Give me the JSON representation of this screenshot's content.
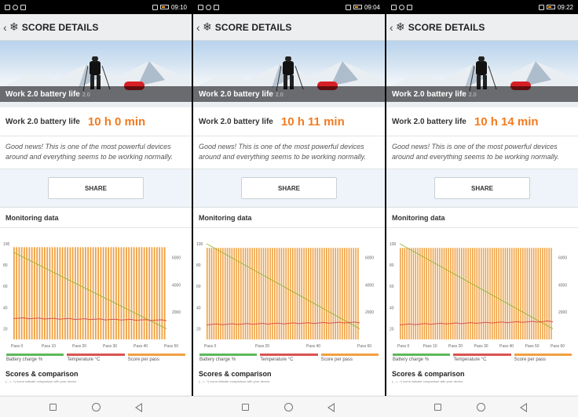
{
  "app": {
    "title": "SCORE DETAILS",
    "score_label": "Work 2.0 battery life",
    "hero_label": "Work 2.0 battery life",
    "hero_version": "2.0",
    "message": "Good news! This is one of the most powerful devices around and everything seems to be working normally.",
    "share_label": "SHARE",
    "monitoring_label": "Monitoring data",
    "scores_title": "Scores & comparison",
    "scores_sub": "(-, =, +) icons indicate comparison with your device.",
    "legend": [
      {
        "label": "Battery charge %",
        "color": "#5cb85c"
      },
      {
        "label": "Temperature °C",
        "color": "#d9534f"
      },
      {
        "label": "Score per pass",
        "color": "#f0a040"
      }
    ],
    "colors": {
      "accent": "#f37b20",
      "bars": "#f0a040",
      "battery": "#9ab83a",
      "temp": "#d9534f"
    }
  },
  "panels": [
    {
      "time": "09:10",
      "score": "10 h 0 min",
      "x_ticks": [
        "Pass 0",
        "Pass 10",
        "Pass 20",
        "Pass 30",
        "Pass 40",
        "Pass 50"
      ]
    },
    {
      "time": "09:04",
      "score": "10 h 11 min",
      "x_ticks": [
        "Pass 0",
        "Pass 20",
        "Pass 40",
        "Pass 60"
      ]
    },
    {
      "time": "09:22",
      "score": "10 h 14 min",
      "x_ticks": [
        "Pass 0",
        "Pass 10",
        "Pass 20",
        "Pass 30",
        "Pass 40",
        "Pass 50",
        "Pass 60"
      ]
    }
  ],
  "chart_data": [
    {
      "type": "bar",
      "left_axis": {
        "ticks": [
          "100",
          "80",
          "60",
          "40",
          "20"
        ],
        "ylim": [
          10,
          100
        ]
      },
      "right_axis": {
        "ticks": [
          "6000",
          "4000",
          "2000"
        ],
        "ylim": [
          0,
          7000
        ]
      },
      "passes": 60,
      "series": [
        {
          "name": "Battery charge %",
          "start": 92,
          "end": 20
        },
        {
          "name": "Temperature °C",
          "start": 30,
          "end": 28
        },
        {
          "name": "Score per pass",
          "value": 6750
        }
      ]
    },
    {
      "type": "bar",
      "left_axis": {
        "ticks": [
          "100",
          "80",
          "60",
          "40",
          "20"
        ],
        "ylim": [
          10,
          100
        ]
      },
      "right_axis": {
        "ticks": [
          "6000",
          "4000",
          "2000"
        ],
        "ylim": [
          0,
          7000
        ]
      },
      "passes": 68,
      "series": [
        {
          "name": "Battery charge %",
          "start": 100,
          "end": 20
        },
        {
          "name": "Temperature °C",
          "start": 24,
          "end": 26
        },
        {
          "name": "Score per pass",
          "value": 6700
        }
      ]
    },
    {
      "type": "bar",
      "left_axis": {
        "ticks": [
          "100",
          "80",
          "60",
          "40",
          "20"
        ],
        "ylim": [
          10,
          100
        ]
      },
      "right_axis": {
        "ticks": [
          "6000",
          "4000",
          "2000"
        ],
        "ylim": [
          0,
          7000
        ]
      },
      "passes": 70,
      "series": [
        {
          "name": "Battery charge %",
          "start": 100,
          "end": 20
        },
        {
          "name": "Temperature °C",
          "start": 24,
          "end": 27
        },
        {
          "name": "Score per pass",
          "value": 6700
        }
      ]
    }
  ]
}
